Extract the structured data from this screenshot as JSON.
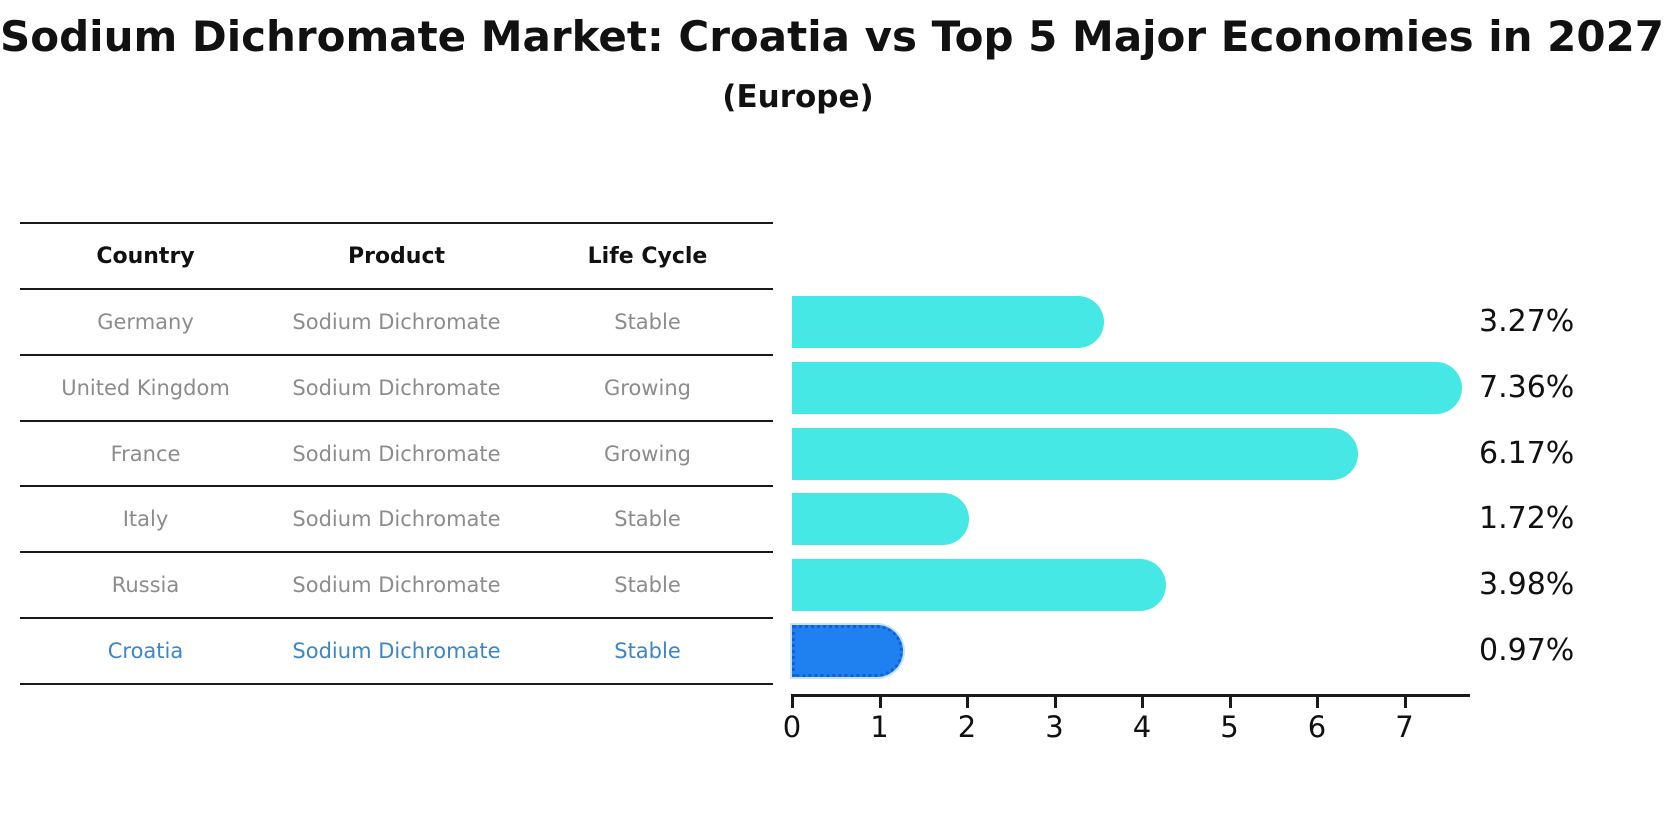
{
  "title": "Sodium Dichromate Market: Croatia vs Top 5 Major Economies in 2027",
  "subtitle": "(Europe)",
  "table": {
    "headers": [
      "Country",
      "Product",
      "Life Cycle"
    ],
    "rows": [
      {
        "country": "Germany",
        "product": "Sodium Dichromate",
        "life_cycle": "Stable",
        "highlight": false
      },
      {
        "country": "United Kingdom",
        "product": "Sodium Dichromate",
        "life_cycle": "Growing",
        "highlight": false
      },
      {
        "country": "France",
        "product": "Sodium Dichromate",
        "life_cycle": "Growing",
        "highlight": false
      },
      {
        "country": "Italy",
        "product": "Sodium Dichromate",
        "life_cycle": "Stable",
        "highlight": false
      },
      {
        "country": "Russia",
        "product": "Sodium Dichromate",
        "life_cycle": "Stable",
        "highlight": false
      },
      {
        "country": "Croatia",
        "product": "Sodium Dichromate",
        "life_cycle": "Stable",
        "highlight": true
      }
    ]
  },
  "chart_data": {
    "type": "bar",
    "orientation": "horizontal",
    "title": "Sodium Dichromate Market: Croatia vs Top 5 Major Economies in 2027",
    "subtitle": "(Europe)",
    "categories": [
      "Germany",
      "United Kingdom",
      "France",
      "Italy",
      "Russia",
      "Croatia"
    ],
    "values": [
      3.27,
      7.36,
      6.17,
      1.72,
      3.98,
      0.97
    ],
    "value_labels": [
      "3.27%",
      "7.36%",
      "6.17%",
      "1.72%",
      "3.98%",
      "0.97%"
    ],
    "x_ticks": [
      "0",
      "1",
      "2",
      "3",
      "4",
      "5",
      "6",
      "7"
    ],
    "xlim": [
      0,
      7.75
    ],
    "grid": false,
    "legend": "none",
    "highlight_index": 5,
    "bar_color": "#45e8e4",
    "highlight_bar_color": "#1f80f0",
    "highlight_border_color": "#1160d8",
    "highlight_text_color": "#3c86c8",
    "text_color": "#111111",
    "muted_text_color": "#8c8c8c"
  }
}
